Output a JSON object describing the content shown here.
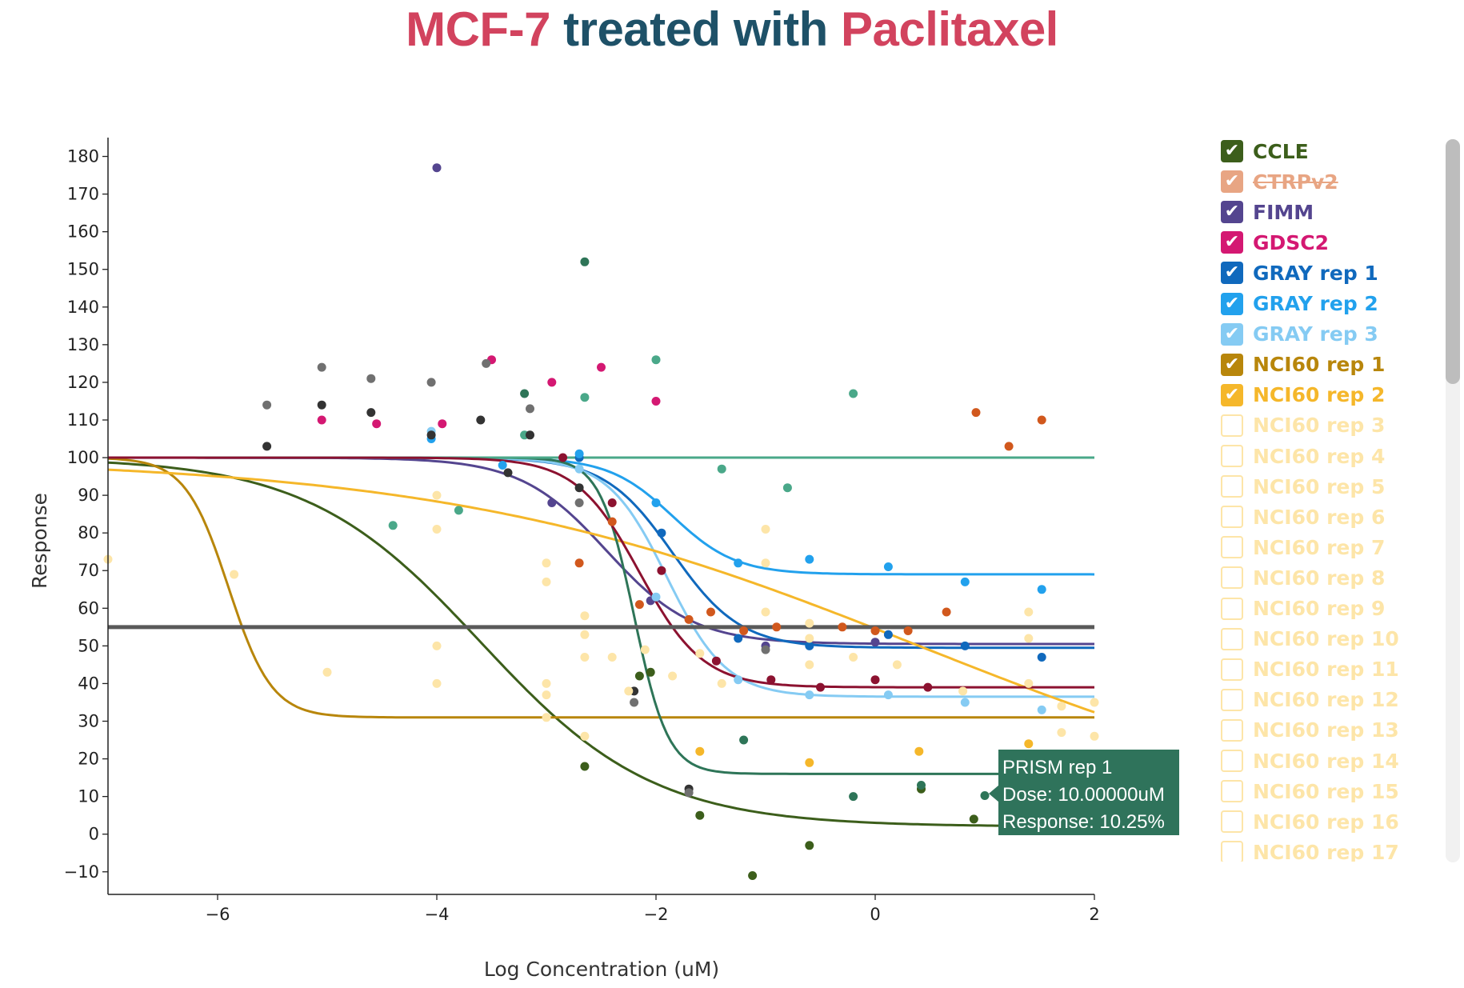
{
  "title": {
    "cell_line": "MCF-7",
    "middle": " treated with ",
    "drug": "Paclitaxel"
  },
  "chart_data": {
    "type": "scatter",
    "xlabel": "Log Concentration (uM)",
    "ylabel": "Response",
    "xlim": [
      -7,
      2
    ],
    "ylim": [
      -16,
      185
    ],
    "xticks": [
      -6,
      -4,
      -2,
      0,
      2
    ],
    "yticks": [
      -10,
      0,
      10,
      20,
      30,
      40,
      50,
      60,
      70,
      80,
      90,
      100,
      110,
      120,
      130,
      140,
      150,
      160,
      170,
      180
    ],
    "tick_labels": {
      "x": [
        "−6",
        "−4",
        "−2",
        "0",
        "2"
      ],
      "y": [
        "−10",
        "0",
        "10",
        "20",
        "30",
        "40",
        "50",
        "60",
        "70",
        "80",
        "90",
        "100",
        "110",
        "120",
        "130",
        "140",
        "150",
        "160",
        "170",
        "180"
      ]
    },
    "reference_line": {
      "y": 55,
      "color": "#5a5a5a"
    },
    "legend_position": "right",
    "series": [
      {
        "name": "CCLE",
        "color": "#3c5e1b",
        "visible": true,
        "curve": {
          "top": 100,
          "bottom": 2,
          "ec50": -3.6,
          "hill": 0.55
        },
        "points": [
          [
            -2.65,
            18
          ],
          [
            -2.15,
            42
          ],
          [
            -2.05,
            43
          ],
          [
            -1.6,
            5
          ],
          [
            -1.12,
            -11
          ],
          [
            -0.6,
            -3
          ],
          [
            0.42,
            12
          ],
          [
            0.9,
            4
          ],
          [
            1.4,
            2
          ]
        ]
      },
      {
        "name": "CTRPv2",
        "color": "#e8a583",
        "visible": false,
        "struck": true,
        "curve": null,
        "points": []
      },
      {
        "name": "FIMM",
        "color": "#54458f",
        "visible": true,
        "curve": {
          "top": 100,
          "bottom": 50.5,
          "ec50": -2.45,
          "hill": 1.1
        },
        "points": [
          [
            -4.0,
            177
          ],
          [
            -2.95,
            88
          ],
          [
            -2.05,
            62
          ],
          [
            -1.0,
            50
          ],
          [
            0.0,
            51
          ]
        ]
      },
      {
        "name": "GDSC2",
        "color": "#d41872",
        "visible": true,
        "curve": null,
        "points": [
          [
            -5.05,
            110
          ],
          [
            -4.55,
            109
          ],
          [
            -3.95,
            109
          ],
          [
            -3.5,
            126
          ],
          [
            -2.95,
            120
          ],
          [
            -2.5,
            124
          ],
          [
            -2.0,
            115
          ]
        ]
      },
      {
        "name": "GRAY rep 1",
        "color": "#1069bd",
        "visible": true,
        "curve": {
          "top": 100,
          "bottom": 49.5,
          "ec50": -1.85,
          "hill": 1.4
        },
        "points": [
          [
            -2.7,
            100
          ],
          [
            -1.95,
            80
          ],
          [
            -1.25,
            52
          ],
          [
            -0.6,
            50
          ],
          [
            0.12,
            53
          ],
          [
            0.82,
            50
          ],
          [
            1.52,
            47
          ]
        ]
      },
      {
        "name": "GRAY rep 2",
        "color": "#22a1ed",
        "visible": true,
        "curve": {
          "top": 100,
          "bottom": 69,
          "ec50": -1.85,
          "hill": 1.5
        },
        "points": [
          [
            -4.05,
            105
          ],
          [
            -3.4,
            98
          ],
          [
            -2.7,
            101
          ],
          [
            -2.0,
            88
          ],
          [
            -1.25,
            72
          ],
          [
            -0.6,
            73
          ],
          [
            0.12,
            71
          ],
          [
            0.82,
            67
          ],
          [
            1.52,
            65
          ]
        ]
      },
      {
        "name": "GRAY rep 3",
        "color": "#85cbf3",
        "visible": true,
        "curve": {
          "top": 100,
          "bottom": 36.5,
          "ec50": -1.9,
          "hill": 1.6
        },
        "points": [
          [
            -4.05,
            107
          ],
          [
            -2.7,
            97
          ],
          [
            -2.0,
            63
          ],
          [
            -1.25,
            41
          ],
          [
            -0.6,
            37
          ],
          [
            0.12,
            37
          ],
          [
            0.82,
            35
          ],
          [
            1.52,
            33
          ]
        ]
      },
      {
        "name": "NCI60 rep 1",
        "color": "#b8860b",
        "visible": true,
        "curve": {
          "top": 100,
          "bottom": 31,
          "ec50": -5.9,
          "hill": 2.2
        },
        "points": []
      },
      {
        "name": "NCI60 rep 2",
        "color": "#f5b72a",
        "visible": true,
        "curve": {
          "top": 100,
          "bottom": 0,
          "ec50": 0.4,
          "hill": 0.2
        },
        "points": [
          [
            -1.6,
            22
          ],
          [
            -0.6,
            19
          ],
          [
            0.4,
            22
          ],
          [
            1.4,
            24
          ]
        ]
      },
      {
        "name": "NCI60 rep 3",
        "color": "#fde5a8",
        "visible": false
      },
      {
        "name": "NCI60 rep 4",
        "color": "#fde5a8",
        "visible": false
      },
      {
        "name": "NCI60 rep 5",
        "color": "#fde5a8",
        "visible": false
      },
      {
        "name": "NCI60 rep 6",
        "color": "#fde5a8",
        "visible": false
      },
      {
        "name": "NCI60 rep 7",
        "color": "#fde5a8",
        "visible": false
      },
      {
        "name": "NCI60 rep 8",
        "color": "#fde5a8",
        "visible": false
      },
      {
        "name": "NCI60 rep 9",
        "color": "#fde5a8",
        "visible": false
      },
      {
        "name": "NCI60 rep 10",
        "color": "#fde5a8",
        "visible": false
      },
      {
        "name": "NCI60 rep 11",
        "color": "#fde5a8",
        "visible": false
      },
      {
        "name": "NCI60 rep 12",
        "color": "#fde5a8",
        "visible": false
      },
      {
        "name": "NCI60 rep 13",
        "color": "#fde5a8",
        "visible": false
      },
      {
        "name": "NCI60 rep 14",
        "color": "#fde5a8",
        "visible": false
      },
      {
        "name": "NCI60 rep 15",
        "color": "#fde5a8",
        "visible": false
      },
      {
        "name": "NCI60 rep 16",
        "color": "#fde5a8",
        "visible": false
      },
      {
        "name": "NCI60 rep 17",
        "color": "#fde5a8",
        "visible": false
      },
      {
        "name": "PRISM rep 1",
        "color": "#2e7558",
        "visible": true,
        "in_legend": false,
        "curve": {
          "top": 100,
          "bottom": 16,
          "ec50": -2.2,
          "hill": 2.8
        },
        "points": [
          [
            -3.2,
            117
          ],
          [
            -2.65,
            152
          ],
          [
            -1.2,
            25
          ],
          [
            -0.2,
            10
          ],
          [
            0.42,
            13
          ],
          [
            1.0,
            10.25
          ]
        ]
      },
      {
        "name": "",
        "color": "#4aa889",
        "visible": true,
        "in_legend": false,
        "curve": {
          "top": 100,
          "bottom": 100,
          "ec50": 0,
          "hill": 1
        },
        "points": [
          [
            -4.4,
            82
          ],
          [
            -3.8,
            86
          ],
          [
            -3.2,
            106
          ],
          [
            -2.65,
            116
          ],
          [
            -2.0,
            126
          ],
          [
            -1.4,
            97
          ],
          [
            -0.8,
            92
          ],
          [
            -0.2,
            117
          ]
        ]
      },
      {
        "name": "",
        "color": "#8c1230",
        "visible": true,
        "in_legend": false,
        "curve": {
          "top": 100,
          "bottom": 39,
          "ec50": -2.15,
          "hill": 1.5
        },
        "points": [
          [
            -2.85,
            100
          ],
          [
            -2.4,
            88
          ],
          [
            -1.95,
            70
          ],
          [
            -1.45,
            46
          ],
          [
            -0.95,
            41
          ],
          [
            -0.5,
            39
          ],
          [
            0.0,
            41
          ],
          [
            0.48,
            39
          ]
        ]
      },
      {
        "name": "",
        "color": "#d1581d",
        "visible": true,
        "in_legend": false,
        "curve": null,
        "points": [
          [
            -2.7,
            72
          ],
          [
            -2.4,
            83
          ],
          [
            -2.15,
            61
          ],
          [
            -1.7,
            57
          ],
          [
            -1.5,
            59
          ],
          [
            -1.2,
            54
          ],
          [
            -0.9,
            55
          ],
          [
            -0.3,
            55
          ],
          [
            0.0,
            54
          ],
          [
            0.3,
            54
          ],
          [
            0.65,
            59
          ],
          [
            0.92,
            112
          ],
          [
            1.22,
            103
          ],
          [
            1.52,
            110
          ]
        ]
      },
      {
        "name": "",
        "color": "#333333",
        "visible": true,
        "in_legend": false,
        "curve": null,
        "points": [
          [
            -5.55,
            103
          ],
          [
            -5.05,
            114
          ],
          [
            -4.6,
            112
          ],
          [
            -4.05,
            106
          ],
          [
            -3.6,
            110
          ],
          [
            -3.35,
            96
          ],
          [
            -3.15,
            106
          ],
          [
            -2.7,
            92
          ],
          [
            -2.2,
            38
          ],
          [
            -1.7,
            12
          ]
        ]
      },
      {
        "name": "",
        "color": "#707070",
        "visible": true,
        "in_legend": false,
        "curve": null,
        "points": [
          [
            -5.55,
            114
          ],
          [
            -5.05,
            124
          ],
          [
            -4.6,
            121
          ],
          [
            -4.05,
            120
          ],
          [
            -3.55,
            125
          ],
          [
            -3.15,
            113
          ],
          [
            -2.7,
            88
          ],
          [
            -2.2,
            35
          ],
          [
            -1.7,
            11
          ],
          [
            -1.0,
            49
          ]
        ]
      },
      {
        "name": "",
        "color": "#fde5a8",
        "visible": true,
        "in_legend": false,
        "curve": null,
        "points": [
          [
            -7.0,
            73
          ],
          [
            -5.85,
            69
          ],
          [
            -5.0,
            43
          ],
          [
            -4.0,
            81
          ],
          [
            -4.0,
            90
          ],
          [
            -4.0,
            50
          ],
          [
            -4.0,
            40
          ],
          [
            -3.0,
            67
          ],
          [
            -3.0,
            72
          ],
          [
            -3.0,
            40
          ],
          [
            -3.0,
            37
          ],
          [
            -3.0,
            31
          ],
          [
            -2.65,
            58
          ],
          [
            -2.65,
            53
          ],
          [
            -2.65,
            47
          ],
          [
            -2.65,
            26
          ],
          [
            -2.4,
            47
          ],
          [
            -2.25,
            38
          ],
          [
            -2.1,
            49
          ],
          [
            -1.85,
            42
          ],
          [
            -1.6,
            48
          ],
          [
            -1.4,
            40
          ],
          [
            -1.0,
            81
          ],
          [
            -1.0,
            72
          ],
          [
            -1.0,
            59
          ],
          [
            -0.6,
            56
          ],
          [
            -0.6,
            52
          ],
          [
            -0.6,
            45
          ],
          [
            -0.2,
            47
          ],
          [
            0.2,
            45
          ],
          [
            0.8,
            38
          ],
          [
            1.4,
            59
          ],
          [
            1.4,
            52
          ],
          [
            1.4,
            40
          ],
          [
            1.7,
            34
          ],
          [
            1.7,
            27
          ],
          [
            2.0,
            35
          ],
          [
            2.0,
            26
          ]
        ]
      }
    ],
    "tooltip": {
      "series": "PRISM rep 1",
      "dose_label": "Dose: 10.00000uM",
      "response_label": "Response: 10.25%"
    }
  }
}
